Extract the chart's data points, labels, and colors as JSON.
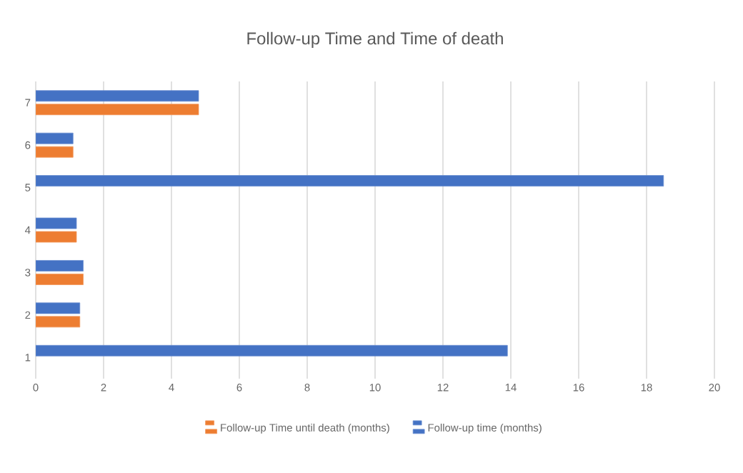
{
  "chart_data": {
    "type": "bar",
    "orientation": "horizontal",
    "title": "Follow-up Time and Time of death",
    "categories": [
      "7",
      "6",
      "5",
      "4",
      "3",
      "2",
      "1"
    ],
    "series": [
      {
        "name": "Follow-up Time until death (months)",
        "color": "#ed7d31",
        "values": [
          4.8,
          1.1,
          null,
          1.2,
          1.4,
          1.3,
          null
        ]
      },
      {
        "name": "Follow-up time (months)",
        "color": "#4472c4",
        "values": [
          4.8,
          1.1,
          18.5,
          1.2,
          1.4,
          1.3,
          13.9
        ]
      }
    ],
    "xlim": [
      0,
      20
    ],
    "xticks": [
      0,
      2,
      4,
      6,
      8,
      10,
      12,
      14,
      16,
      18,
      20
    ],
    "grid": "x",
    "legend": "bottom"
  }
}
